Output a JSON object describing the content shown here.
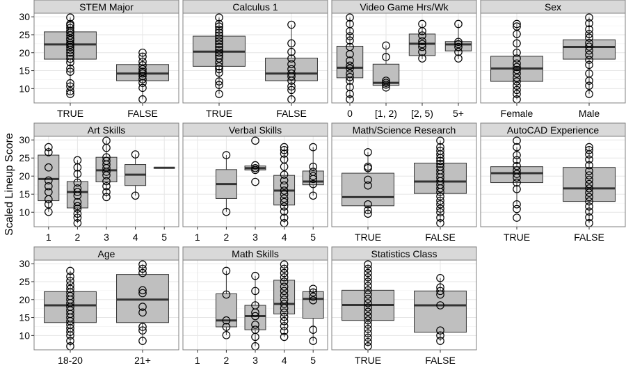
{
  "figure": {
    "ylabel": "Scaled Lineup Score"
  },
  "colors": {
    "strip_fill": "#d9d9d9",
    "panel_border": "#808080",
    "box_fill": "#bfbfbf",
    "box_stroke": "#333333",
    "grid": "#e6e6e6",
    "text": "#000000"
  },
  "chart_data": [
    {
      "type": "box",
      "title": "STEM Major",
      "categories": [
        "TRUE",
        "FALSE"
      ],
      "ylim": [
        6,
        31
      ],
      "yticks": [
        10,
        15,
        20,
        25,
        30
      ],
      "grid": true,
      "boxes": [
        {
          "q1": 18.2,
          "median": 22.3,
          "q3": 25.8,
          "whisker_low": 8.5,
          "whisker_high": 29.8,
          "points": [
            29.8,
            28.0,
            27.6,
            26.9,
            26.1,
            25.6,
            24.8,
            24.0,
            23.5,
            22.7,
            22.2,
            21.6,
            20.8,
            20.0,
            19.2,
            18.3,
            17.3,
            15.6,
            14.7,
            11.5,
            10.6,
            9.3,
            8.5
          ]
        },
        {
          "q1": 12.2,
          "median": 14.2,
          "q3": 16.7,
          "whisker_low": 7.0,
          "whisker_high": 20.0,
          "points": [
            20.0,
            18.9,
            17.5,
            16.5,
            15.4,
            14.7,
            14.2,
            13.5,
            12.6,
            11.6,
            10.2,
            7.0
          ]
        }
      ]
    },
    {
      "type": "box",
      "title": "Calculus 1",
      "categories": [
        "TRUE",
        "FALSE"
      ],
      "ylim": [
        6,
        31
      ],
      "yticks": [
        10,
        15,
        20,
        25,
        30
      ],
      "grid": true,
      "boxes": [
        {
          "q1": 16.2,
          "median": 20.3,
          "q3": 24.6,
          "whisker_low": 8.5,
          "whisker_high": 29.8,
          "points": [
            29.8,
            28.0,
            27.3,
            26.4,
            25.6,
            24.8,
            24.0,
            23.2,
            22.4,
            21.6,
            20.8,
            20.0,
            19.2,
            18.4,
            17.3,
            16.2,
            15.4,
            14.4,
            12.0,
            11.0,
            8.5
          ]
        },
        {
          "q1": 12.2,
          "median": 14.2,
          "q3": 18.5,
          "whisker_low": 7.0,
          "whisker_high": 27.8,
          "points": [
            27.8,
            22.6,
            20.2,
            18.4,
            16.8,
            15.4,
            14.2,
            13.4,
            12.2,
            10.6,
            9.6,
            7.0
          ]
        }
      ]
    },
    {
      "type": "box",
      "title": "Video Game Hrs/Wk",
      "categories": [
        "0",
        "[1, 2)",
        "[2, 5)",
        "5+"
      ],
      "ylim": [
        6,
        31
      ],
      "yticks": [
        10,
        15,
        20,
        25,
        30
      ],
      "grid": true,
      "boxes": [
        {
          "q1": 13.0,
          "median": 15.8,
          "q3": 21.8,
          "whisker_low": 7.0,
          "whisker_high": 29.8,
          "points": [
            29.8,
            28.0,
            26.0,
            24.6,
            23.4,
            21.6,
            19.6,
            17.8,
            16.4,
            15.6,
            14.2,
            13.2,
            12.2,
            10.4,
            8.5,
            7.0
          ]
        },
        {
          "q1": 10.9,
          "median": 11.6,
          "q3": 16.8,
          "whisker_low": 10.1,
          "whisker_high": 22.0,
          "points": [
            22.0,
            18.8,
            12.2,
            11.6,
            11.1,
            10.3
          ]
        },
        {
          "q1": 19.2,
          "median": 22.5,
          "q3": 25.2,
          "whisker_low": 18.2,
          "whisker_high": 28.0,
          "points": [
            28.0,
            26.0,
            24.8,
            23.2,
            22.4,
            21.6,
            20.2,
            18.4
          ]
        },
        {
          "q1": 20.5,
          "median": 22.3,
          "q3": 23.1,
          "whisker_low": 18.2,
          "whisker_high": 28.0,
          "points": [
            28.0,
            23.0,
            22.4,
            21.6,
            20.2,
            18.4
          ]
        }
      ]
    },
    {
      "type": "box",
      "title": "Sex",
      "categories": [
        "Female",
        "Male"
      ],
      "ylim": [
        6,
        31
      ],
      "yticks": [
        10,
        15,
        20,
        25,
        30
      ],
      "grid": true,
      "boxes": [
        {
          "q1": 12.0,
          "median": 15.6,
          "q3": 19.0,
          "whisker_low": 7.0,
          "whisker_high": 28.0,
          "points": [
            28.0,
            27.3,
            25.2,
            22.6,
            20.0,
            18.4,
            17.0,
            16.0,
            15.2,
            14.2,
            13.0,
            12.0,
            10.8,
            9.6,
            8.5,
            7.0
          ]
        },
        {
          "q1": 18.2,
          "median": 21.6,
          "q3": 23.6,
          "whisker_low": 8.5,
          "whisker_high": 29.8,
          "points": [
            29.8,
            28.2,
            26.5,
            25.2,
            24.2,
            22.7,
            21.7,
            20.6,
            19.4,
            18.0,
            16.6,
            14.2,
            12.2,
            10.8,
            8.5
          ]
        }
      ]
    },
    {
      "type": "box",
      "title": "Art Skills",
      "categories": [
        "1",
        "2",
        "3",
        "4",
        "5"
      ],
      "ylim": [
        6,
        31
      ],
      "yticks": [
        10,
        15,
        20,
        25,
        30
      ],
      "grid": true,
      "boxes": [
        {
          "q1": 13.2,
          "median": 19.2,
          "q3": 25.8,
          "whisker_low": 10.1,
          "whisker_high": 28.0,
          "points": [
            28.0,
            26.6,
            22.4,
            18.8,
            17.2,
            15.6,
            13.6,
            12.2,
            10.1
          ]
        },
        {
          "q1": 11.2,
          "median": 15.6,
          "q3": 18.5,
          "whisker_low": 7.0,
          "whisker_high": 24.4,
          "points": [
            24.4,
            22.4,
            20.6,
            18.2,
            16.6,
            15.6,
            14.6,
            12.8,
            11.7,
            11.0,
            9.6,
            8.5,
            7.0
          ]
        },
        {
          "q1": 18.4,
          "median": 21.6,
          "q3": 25.2,
          "whisker_low": 14.2,
          "whisker_high": 29.8,
          "points": [
            29.8,
            27.8,
            25.2,
            24.2,
            23.2,
            22.2,
            21.2,
            20.2,
            18.6,
            17.2,
            15.6,
            14.2
          ]
        },
        {
          "q1": 17.4,
          "median": 20.4,
          "q3": 23.2,
          "whisker_low": 14.6,
          "whisker_high": 26.0,
          "points": [
            26.0,
            14.6
          ]
        },
        {
          "q1": 22.3,
          "median": 22.3,
          "q3": 22.3,
          "whisker_low": 22.3,
          "whisker_high": 22.3,
          "points": []
        }
      ]
    },
    {
      "type": "box",
      "title": "Verbal Skills",
      "categories": [
        "1",
        "2",
        "3",
        "4",
        "5"
      ],
      "ylim": [
        6,
        31
      ],
      "yticks": [
        10,
        15,
        20,
        25,
        30
      ],
      "grid": true,
      "boxes": [
        null,
        {
          "q1": 13.8,
          "median": 17.8,
          "q3": 21.8,
          "whisker_low": 10.1,
          "whisker_high": 25.8,
          "points": [
            25.8,
            10.1
          ]
        },
        {
          "q1": 21.7,
          "median": 22.2,
          "q3": 22.8,
          "whisker_low": 21.7,
          "whisker_high": 22.8,
          "points": [
            29.8,
            23.0,
            22.2,
            21.7,
            18.4
          ]
        },
        {
          "q1": 12.0,
          "median": 16.0,
          "q3": 20.2,
          "whisker_low": 7.0,
          "whisker_high": 28.0,
          "points": [
            28.0,
            27.2,
            26.2,
            24.6,
            22.6,
            20.4,
            18.8,
            17.4,
            16.0,
            15.0,
            13.8,
            12.8,
            11.6,
            10.2,
            8.5,
            7.0
          ]
        },
        {
          "q1": 17.6,
          "median": 18.5,
          "q3": 21.4,
          "whisker_low": 14.6,
          "whisker_high": 28.0,
          "points": [
            28.0,
            22.6,
            21.2,
            20.0,
            19.2,
            17.8,
            14.6
          ]
        }
      ]
    },
    {
      "type": "box",
      "title": "Math/Science Research",
      "categories": [
        "TRUE",
        "FALSE"
      ],
      "ylim": [
        6,
        31
      ],
      "yticks": [
        10,
        15,
        20,
        25,
        30
      ],
      "grid": true,
      "boxes": [
        {
          "q1": 11.8,
          "median": 14.2,
          "q3": 20.8,
          "whisker_low": 9.6,
          "whisker_high": 26.6,
          "points": [
            26.6,
            22.6,
            22.2,
            19.0,
            17.4,
            12.2,
            10.6,
            9.6
          ]
        },
        {
          "q1": 15.2,
          "median": 18.5,
          "q3": 23.6,
          "whisker_low": 7.0,
          "whisker_high": 29.8,
          "points": [
            29.8,
            28.0,
            27.0,
            26.0,
            25.0,
            24.2,
            23.4,
            22.6,
            21.6,
            20.6,
            19.6,
            18.6,
            17.6,
            16.6,
            15.6,
            14.4,
            13.2,
            12.2,
            11.0,
            10.0,
            8.5,
            7.0
          ]
        }
      ]
    },
    {
      "type": "box",
      "title": "AutoCAD Experience",
      "categories": [
        "TRUE",
        "FALSE"
      ],
      "ylim": [
        6,
        31
      ],
      "yticks": [
        10,
        15,
        20,
        25,
        30
      ],
      "grid": true,
      "boxes": [
        {
          "q1": 18.2,
          "median": 20.8,
          "q3": 22.6,
          "whisker_low": 12.2,
          "whisker_high": 28.0,
          "points": [
            29.8,
            28.0,
            25.8,
            24.4,
            22.8,
            21.6,
            20.6,
            19.6,
            18.2,
            16.4,
            12.2,
            10.9,
            8.5
          ]
        },
        {
          "q1": 13.0,
          "median": 16.6,
          "q3": 22.4,
          "whisker_low": 7.0,
          "whisker_high": 28.0,
          "points": [
            28.0,
            27.2,
            26.0,
            24.6,
            23.0,
            21.4,
            20.2,
            19.0,
            17.8,
            16.6,
            15.4,
            14.2,
            13.0,
            11.6,
            10.2,
            8.6,
            7.0
          ]
        }
      ]
    },
    {
      "type": "box",
      "title": "Age",
      "categories": [
        "18-20",
        "21+"
      ],
      "ylim": [
        6,
        31
      ],
      "yticks": [
        10,
        15,
        20,
        25,
        30
      ],
      "grid": true,
      "boxes": [
        {
          "q1": 13.6,
          "median": 18.4,
          "q3": 22.2,
          "whisker_low": 7.0,
          "whisker_high": 28.0,
          "points": [
            28.0,
            26.4,
            25.2,
            24.0,
            23.0,
            22.0,
            21.0,
            20.0,
            19.0,
            18.0,
            17.0,
            16.0,
            15.0,
            14.0,
            13.0,
            12.0,
            11.0,
            10.0,
            8.5,
            7.0
          ]
        },
        {
          "q1": 13.6,
          "median": 20.0,
          "q3": 27.0,
          "whisker_low": 8.5,
          "whisker_high": 29.8,
          "points": [
            29.8,
            28.6,
            27.4,
            22.6,
            21.8,
            18.0,
            16.4,
            12.4,
            11.4,
            8.5
          ]
        }
      ]
    },
    {
      "type": "box",
      "title": "Math Skills",
      "categories": [
        "1",
        "2",
        "3",
        "4",
        "5"
      ],
      "ylim": [
        6,
        31
      ],
      "yticks": [
        10,
        15,
        20,
        25,
        30
      ],
      "grid": true,
      "boxes": [
        null,
        {
          "q1": 12.4,
          "median": 14.2,
          "q3": 21.6,
          "whisker_low": 10.1,
          "whisker_high": 28.0,
          "points": [
            28.0,
            21.4,
            14.2,
            12.4,
            10.1
          ]
        },
        {
          "q1": 11.6,
          "median": 15.4,
          "q3": 18.4,
          "whisker_low": 7.0,
          "whisker_high": 26.6,
          "points": [
            26.6,
            22.4,
            18.4,
            16.4,
            15.4,
            13.0,
            11.6,
            9.6,
            7.0
          ]
        },
        {
          "q1": 16.0,
          "median": 18.8,
          "q3": 25.4,
          "whisker_low": 9.6,
          "whisker_high": 29.8,
          "points": [
            29.8,
            28.6,
            27.4,
            26.2,
            25.0,
            23.6,
            22.4,
            21.2,
            20.0,
            18.8,
            17.6,
            16.4,
            15.2,
            14.0,
            12.6,
            11.2,
            9.6
          ]
        },
        {
          "q1": 14.8,
          "median": 20.2,
          "q3": 22.2,
          "whisker_low": 8.5,
          "whisker_high": 23.0,
          "points": [
            23.0,
            22.0,
            20.8,
            19.8,
            11.6,
            8.5
          ]
        }
      ]
    },
    {
      "type": "box",
      "title": "Statistics Class",
      "categories": [
        "TRUE",
        "FALSE"
      ],
      "ylim": [
        6,
        31
      ],
      "yticks": [
        10,
        15,
        20,
        25,
        30
      ],
      "grid": true,
      "boxes": [
        {
          "q1": 14.2,
          "median": 18.5,
          "q3": 22.6,
          "whisker_low": 7.0,
          "whisker_high": 29.8,
          "points": [
            29.8,
            28.6,
            27.4,
            26.2,
            25.0,
            23.8,
            22.6,
            21.4,
            20.2,
            19.0,
            17.8,
            16.6,
            15.4,
            14.2,
            13.0,
            11.8,
            10.6,
            9.4,
            8.2,
            7.0
          ]
        },
        {
          "q1": 10.9,
          "median": 18.4,
          "q3": 22.4,
          "whisker_low": 8.5,
          "whisker_high": 26.0,
          "points": [
            26.0,
            23.4,
            22.4,
            21.4,
            18.4,
            11.4,
            10.0,
            8.5
          ]
        }
      ]
    }
  ]
}
